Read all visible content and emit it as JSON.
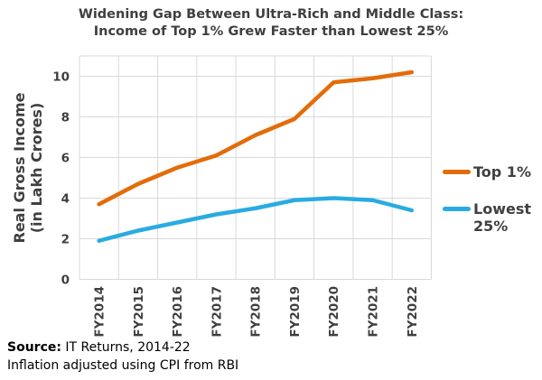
{
  "title": {
    "line1": "Widening Gap Between Ultra-Rich and Middle Class:",
    "line2": "Income of Top 1% Grew Faster than Lowest 25%"
  },
  "y_axis_title": {
    "line1": "Real Gross Income",
    "line2": "(in Lakh Crores)"
  },
  "source": {
    "label": "Source:",
    "text": " IT Returns, 2014-22",
    "note": "Inflation adjusted using CPI from RBI"
  },
  "chart_data": {
    "type": "line",
    "title": "Widening Gap Between Ultra-Rich and Middle Class: Income of Top 1% Grew Faster than Lowest 25%",
    "categories": [
      "FY2014",
      "FY2015",
      "FY2016",
      "FY2017",
      "FY2018",
      "FY2019",
      "FY2020",
      "FY2021",
      "FY2022"
    ],
    "series": [
      {
        "name": "Top 1%",
        "color": "#E36C09",
        "values": [
          3.7,
          4.7,
          5.5,
          6.1,
          7.1,
          7.9,
          9.7,
          9.9,
          10.2
        ]
      },
      {
        "name": "Lowest 25%",
        "color": "#29ABE2",
        "values": [
          1.9,
          2.4,
          2.8,
          3.2,
          3.5,
          3.9,
          4.0,
          3.9,
          3.4
        ]
      }
    ],
    "xlabel": "",
    "ylabel": "Real Gross Income (in Lakh Crores)",
    "yticks": [
      0,
      2,
      4,
      6,
      8,
      10
    ],
    "ylim": [
      0,
      11
    ],
    "grid": true,
    "legend_position": "right",
    "colors": {
      "grid": "#D9D9D9",
      "axis_text": "#3F3F3F",
      "title_text": "#3F3F3F"
    }
  }
}
